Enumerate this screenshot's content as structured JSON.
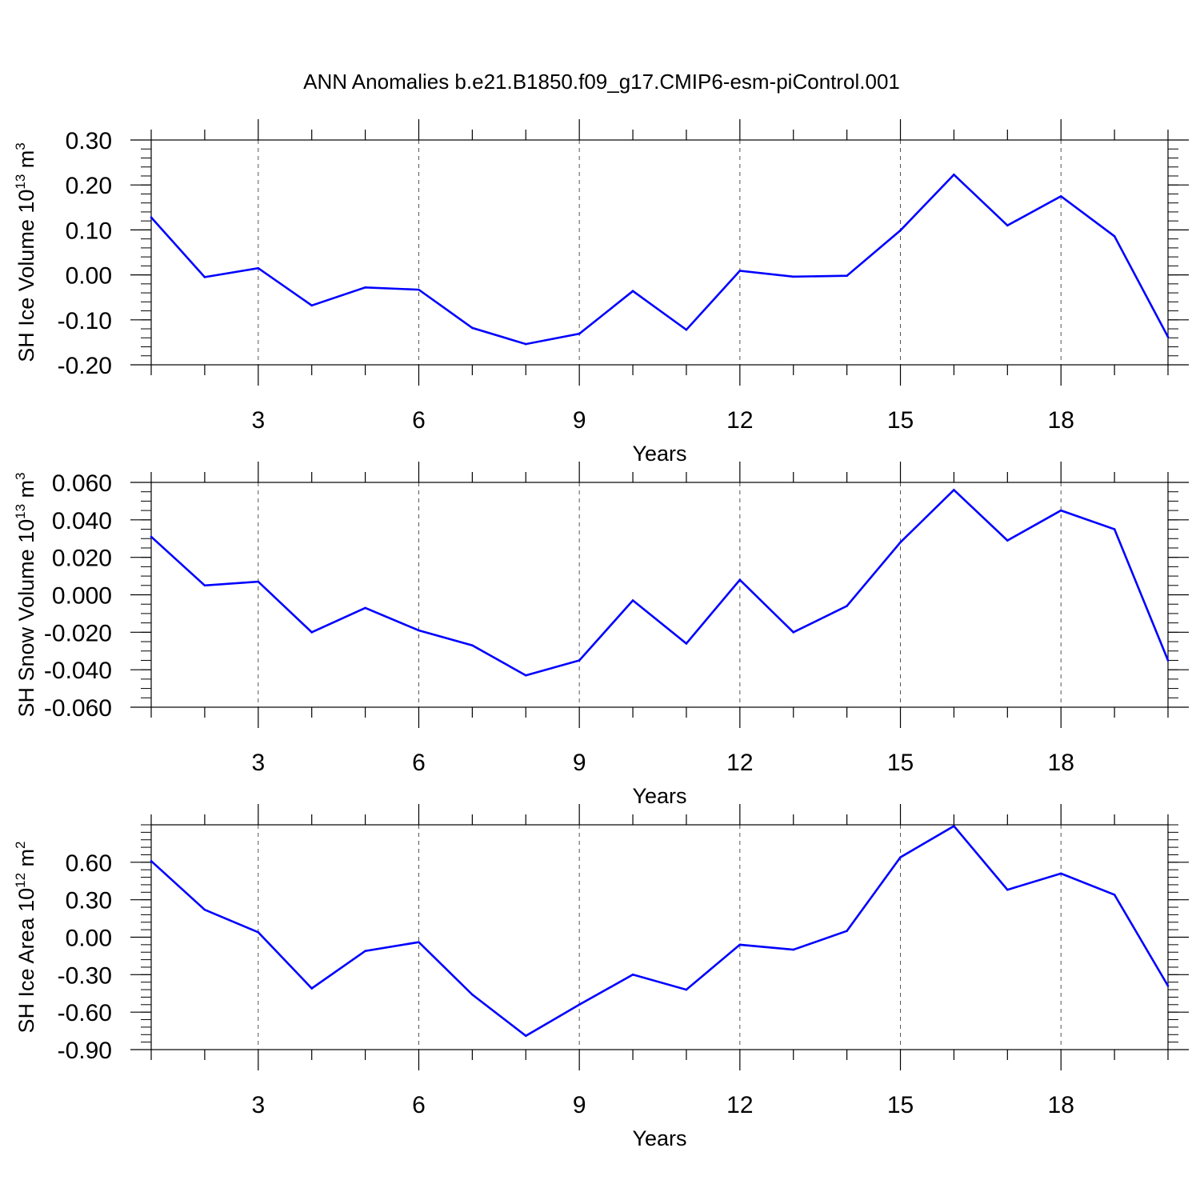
{
  "title": "ANN Anomalies b.e21.B1850.f09_g17.CMIP6-esm-piControl.001",
  "line_color": "#0000ff",
  "chart_data": [
    {
      "type": "line",
      "ylabel": "SH Ice Volume 10",
      "ylabel_exp": "13",
      "ylabel_unit": " m",
      "ylabel_unit_exp": "3",
      "xlabel": "Years",
      "xlim": [
        1,
        20
      ],
      "ylim": [
        -0.2,
        0.3
      ],
      "x_ticks": [
        3,
        6,
        9,
        12,
        15,
        18
      ],
      "x_tick_labels": [
        "3",
        "6",
        "9",
        "12",
        "15",
        "18"
      ],
      "y_ticks": [
        -0.2,
        -0.1,
        0.0,
        0.1,
        0.2,
        0.3
      ],
      "y_tick_labels": [
        "-0.20",
        "-0.10",
        "0.00",
        "0.10",
        "0.20",
        "0.30"
      ],
      "y_minor_step": 0.02,
      "x": [
        1,
        2,
        3,
        4,
        5,
        6,
        7,
        8,
        9,
        10,
        11,
        12,
        13,
        14,
        15,
        16,
        17,
        18,
        19,
        20
      ],
      "y": [
        0.128,
        -0.005,
        0.015,
        -0.068,
        -0.028,
        -0.033,
        -0.118,
        -0.154,
        -0.131,
        -0.036,
        -0.122,
        0.009,
        -0.004,
        -0.002,
        0.099,
        0.223,
        0.11,
        0.175,
        0.086,
        -0.138
      ]
    },
    {
      "type": "line",
      "ylabel": "SH Snow Volume 10",
      "ylabel_exp": "13",
      "ylabel_unit": " m",
      "ylabel_unit_exp": "3",
      "xlabel": "Years",
      "xlim": [
        1,
        20
      ],
      "ylim": [
        -0.06,
        0.06
      ],
      "x_ticks": [
        3,
        6,
        9,
        12,
        15,
        18
      ],
      "x_tick_labels": [
        "3",
        "6",
        "9",
        "12",
        "15",
        "18"
      ],
      "y_ticks": [
        -0.06,
        -0.04,
        -0.02,
        0.0,
        0.02,
        0.04,
        0.06
      ],
      "y_tick_labels": [
        "-0.060",
        "-0.040",
        "-0.020",
        "0.000",
        "0.020",
        "0.040",
        "0.060"
      ],
      "y_minor_step": 0.005,
      "x": [
        1,
        2,
        3,
        4,
        5,
        6,
        7,
        8,
        9,
        10,
        11,
        12,
        13,
        14,
        15,
        16,
        17,
        18,
        19,
        20
      ],
      "y": [
        0.031,
        0.005,
        0.007,
        -0.02,
        -0.007,
        -0.019,
        -0.027,
        -0.043,
        -0.035,
        -0.003,
        -0.026,
        0.008,
        -0.02,
        -0.006,
        0.028,
        0.056,
        0.029,
        0.045,
        0.035,
        -0.035
      ]
    },
    {
      "type": "line",
      "ylabel": "SH Ice Area 10",
      "ylabel_exp": "12",
      "ylabel_unit": " m",
      "ylabel_unit_exp": "2",
      "xlabel": "Years",
      "xlim": [
        1,
        20
      ],
      "ylim": [
        -0.9,
        0.9
      ],
      "x_ticks": [
        3,
        6,
        9,
        12,
        15,
        18
      ],
      "x_tick_labels": [
        "3",
        "6",
        "9",
        "12",
        "15",
        "18"
      ],
      "y_ticks": [
        -0.9,
        -0.6,
        -0.3,
        0.0,
        0.3,
        0.6
      ],
      "y_tick_labels": [
        "-0.90",
        "-0.60",
        "-0.30",
        "0.00",
        "0.30",
        "0.60"
      ],
      "y_minor_step": 0.06,
      "x": [
        1,
        2,
        3,
        4,
        5,
        6,
        7,
        8,
        9,
        10,
        11,
        12,
        13,
        14,
        15,
        16,
        17,
        18,
        19,
        20
      ],
      "y": [
        0.61,
        0.22,
        0.04,
        -0.41,
        -0.11,
        -0.04,
        -0.46,
        -0.79,
        -0.54,
        -0.3,
        -0.42,
        -0.06,
        -0.1,
        0.05,
        0.64,
        0.89,
        0.38,
        0.51,
        0.34,
        -0.39
      ]
    }
  ]
}
